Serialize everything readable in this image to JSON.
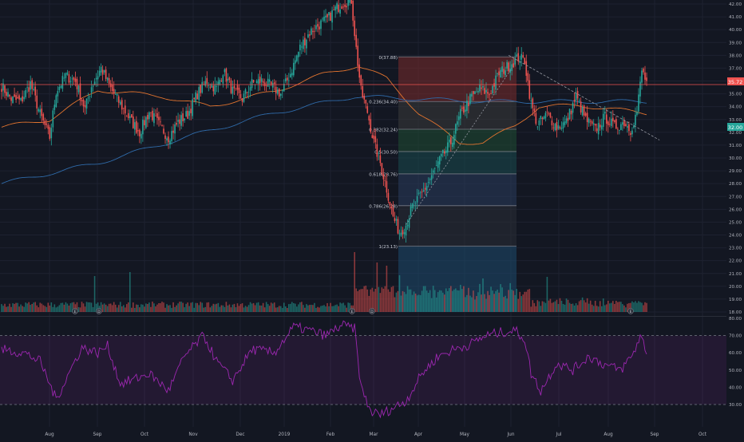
{
  "colors": {
    "background": "#131722",
    "grid": "#1e2230",
    "axis_text": "#b2b5be",
    "up": "#26a69a",
    "down": "#ef5350",
    "ma_fast": "#e0732f",
    "ma_slow": "#2f6aa8",
    "rsi": "#9c27b0",
    "price_line": "#ef5350",
    "price_tag": "#ef5350",
    "price_tag2": "#26a69a",
    "fib_line": "#787b86",
    "fib_zone_0": "#7a2b2b",
    "fib_zone_1": "#3a3a3a",
    "fib_zone_2": "#1f4d33",
    "fib_zone_3": "#1a4a4f",
    "fib_zone_4": "#2a3d5c",
    "fib_zone_5": "#2a2d36",
    "fib_zone_6": "#1e4a6e"
  },
  "price_tags": {
    "current": "35.72",
    "secondary": "32.00"
  },
  "events": {
    "earnings_label": "E",
    "dividend_label": "D"
  },
  "chart_data": [
    {
      "type": "candlestick",
      "title": "",
      "x_tick_labels": [
        "Aug",
        "Sep",
        "Oct",
        "Nov",
        "Dec",
        "2019",
        "Feb",
        "Mar",
        "Apr",
        "May",
        "Jun",
        "Jul",
        "Aug",
        "Sep",
        "Oct"
      ],
      "y_tick_labels": [
        "42.00",
        "41.00",
        "40.00",
        "39.00",
        "38.00",
        "37.00",
        "36.00",
        "35.00",
        "34.00",
        "33.00",
        "32.00",
        "31.00",
        "30.00",
        "29.00",
        "28.00",
        "27.00",
        "26.00",
        "25.00",
        "24.00",
        "23.00",
        "22.00",
        "21.00",
        "20.00",
        "19.00",
        "18.00"
      ],
      "ylim": [
        18,
        42.4
      ],
      "horizontal_line": 35.72,
      "fibonacci": {
        "high": 37.88,
        "low": 23.13,
        "levels": [
          {
            "label": "0(37.88)",
            "ratio": 0,
            "price": 37.88
          },
          {
            "label": "0.236(34.40)",
            "ratio": 0.236,
            "price": 34.4
          },
          {
            "label": "0.382(32.24)",
            "ratio": 0.382,
            "price": 32.24
          },
          {
            "label": "0.5(30.50)",
            "ratio": 0.5,
            "price": 30.5
          },
          {
            "label": "0.618(28.76)",
            "ratio": 0.618,
            "price": 28.76
          },
          {
            "label": "0.786(26.28)",
            "ratio": 0.786,
            "price": 26.28
          },
          {
            "label": "1(23.13)",
            "ratio": 1,
            "price": 23.13
          }
        ]
      },
      "anchors": [
        [
          0,
          35.6
        ],
        [
          6,
          34.6
        ],
        [
          12,
          34.4
        ],
        [
          18,
          35.8
        ],
        [
          24,
          33.4
        ],
        [
          30,
          31.6
        ],
        [
          34,
          35.2
        ],
        [
          40,
          36.4
        ],
        [
          46,
          36.0
        ],
        [
          52,
          33.8
        ],
        [
          56,
          35.6
        ],
        [
          62,
          37.0
        ],
        [
          68,
          35.4
        ],
        [
          74,
          34.2
        ],
        [
          80,
          33.0
        ],
        [
          86,
          32.0
        ],
        [
          92,
          33.6
        ],
        [
          98,
          32.6
        ],
        [
          104,
          31.6
        ],
        [
          110,
          32.8
        ],
        [
          116,
          33.4
        ],
        [
          122,
          35.0
        ],
        [
          128,
          36.0
        ],
        [
          134,
          35.4
        ],
        [
          138,
          36.8
        ],
        [
          144,
          35.2
        ],
        [
          150,
          34.6
        ],
        [
          156,
          35.8
        ],
        [
          162,
          36.0
        ],
        [
          168,
          35.6
        ],
        [
          174,
          35.0
        ],
        [
          180,
          36.6
        ],
        [
          186,
          38.6
        ],
        [
          192,
          39.8
        ],
        [
          198,
          40.4
        ],
        [
          203,
          40.8
        ],
        [
          208,
          41.6
        ],
        [
          213,
          42.1
        ],
        [
          218,
          42.3
        ],
        [
          221,
          38.5
        ],
        [
          224,
          35.2
        ],
        [
          228,
          33.6
        ],
        [
          232,
          31.2
        ],
        [
          236,
          29.6
        ],
        [
          240,
          27.6
        ],
        [
          244,
          25.4
        ],
        [
          248,
          24.2
        ],
        [
          252,
          24.8
        ],
        [
          256,
          26.2
        ],
        [
          262,
          27.2
        ],
        [
          268,
          28.6
        ],
        [
          274,
          30.0
        ],
        [
          280,
          31.2
        ],
        [
          286,
          33.4
        ],
        [
          292,
          34.6
        ],
        [
          298,
          35.4
        ],
        [
          304,
          35.0
        ],
        [
          310,
          36.6
        ],
        [
          316,
          37.2
        ],
        [
          322,
          37.8
        ],
        [
          326,
          37.6
        ],
        [
          330,
          34.2
        ],
        [
          334,
          32.6
        ],
        [
          340,
          33.4
        ],
        [
          346,
          32.4
        ],
        [
          352,
          32.8
        ],
        [
          358,
          34.8
        ],
        [
          364,
          33.0
        ],
        [
          370,
          32.2
        ],
        [
          376,
          33.2
        ],
        [
          382,
          32.4
        ],
        [
          388,
          32.8
        ],
        [
          392,
          32.2
        ],
        [
          396,
          33.6
        ],
        [
          399,
          36.8
        ],
        [
          402,
          35.9
        ]
      ],
      "ma_fast_anchors": [
        [
          0,
          32.4
        ],
        [
          30,
          33.0
        ],
        [
          60,
          35.3
        ],
        [
          100,
          34.8
        ],
        [
          130,
          34.0
        ],
        [
          170,
          35.2
        ],
        [
          200,
          36.5
        ],
        [
          222,
          37.2
        ],
        [
          240,
          36.2
        ],
        [
          260,
          33.5
        ],
        [
          285,
          31.2
        ],
        [
          300,
          31.2
        ],
        [
          320,
          32.5
        ],
        [
          335,
          34.0
        ],
        [
          360,
          34.1
        ],
        [
          402,
          33.5
        ]
      ],
      "ma_slow_anchors": [
        [
          0,
          28.0
        ],
        [
          60,
          29.6
        ],
        [
          120,
          31.8
        ],
        [
          170,
          33.5
        ],
        [
          220,
          34.8
        ],
        [
          260,
          34.6
        ],
        [
          300,
          34.4
        ],
        [
          340,
          34.4
        ],
        [
          402,
          34.4
        ]
      ],
      "trendline": {
        "from": [
          316,
          38.0
        ],
        "to": [
          410,
          31.4
        ]
      },
      "support_line": {
        "from": [
          252,
          24.8
        ],
        "to": [
          318,
          37.0
        ]
      }
    },
    {
      "type": "bar",
      "name_text": "",
      "description": "volume",
      "spikes": [
        [
          220,
          55
        ],
        [
          234,
          42
        ],
        [
          240,
          38
        ],
        [
          80,
          30
        ],
        [
          58,
          25
        ],
        [
          340,
          24
        ],
        [
          248,
          26
        ],
        [
          300,
          22
        ]
      ]
    },
    {
      "type": "line",
      "title": "",
      "y_tick_labels": [
        "80.00",
        "70.00",
        "60.00",
        "50.00",
        "40.00",
        "30.00"
      ],
      "ylim": [
        23,
        80
      ],
      "band": [
        30,
        70
      ],
      "anchors": [
        [
          0,
          62
        ],
        [
          14,
          60
        ],
        [
          24,
          55
        ],
        [
          34,
          33
        ],
        [
          44,
          52
        ],
        [
          50,
          63
        ],
        [
          60,
          60
        ],
        [
          66,
          64
        ],
        [
          74,
          42
        ],
        [
          84,
          45
        ],
        [
          92,
          48
        ],
        [
          104,
          38
        ],
        [
          114,
          58
        ],
        [
          126,
          70
        ],
        [
          134,
          55
        ],
        [
          144,
          44
        ],
        [
          156,
          62
        ],
        [
          170,
          60
        ],
        [
          182,
          75
        ],
        [
          192,
          73
        ],
        [
          202,
          70
        ],
        [
          212,
          76
        ],
        [
          220,
          74
        ],
        [
          224,
          40
        ],
        [
          230,
          26
        ],
        [
          236,
          24
        ],
        [
          244,
          28
        ],
        [
          252,
          32
        ],
        [
          262,
          48
        ],
        [
          272,
          58
        ],
        [
          282,
          62
        ],
        [
          292,
          65
        ],
        [
          302,
          70
        ],
        [
          312,
          72
        ],
        [
          320,
          73
        ],
        [
          326,
          68
        ],
        [
          330,
          48
        ],
        [
          336,
          38
        ],
        [
          346,
          54
        ],
        [
          356,
          50
        ],
        [
          366,
          58
        ],
        [
          376,
          53
        ],
        [
          386,
          50
        ],
        [
          394,
          60
        ],
        [
          398,
          70
        ],
        [
          402,
          61
        ]
      ]
    }
  ]
}
